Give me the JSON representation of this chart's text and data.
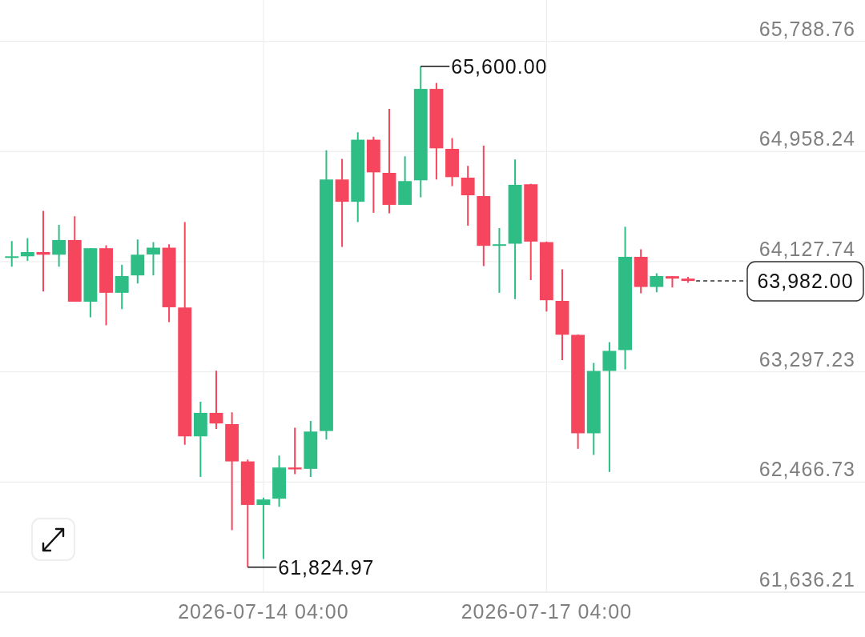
{
  "chart_data": {
    "type": "candlestick",
    "x": [
      "2026-07-11T12:00",
      "2026-07-11T16:00",
      "2026-07-11T20:00",
      "2026-07-12T00:00",
      "2026-07-12T04:00",
      "2026-07-12T08:00",
      "2026-07-12T12:00",
      "2026-07-12T16:00",
      "2026-07-12T20:00",
      "2026-07-13T00:00",
      "2026-07-13T04:00",
      "2026-07-13T08:00",
      "2026-07-13T12:00",
      "2026-07-13T16:00",
      "2026-07-13T20:00",
      "2026-07-14T00:00",
      "2026-07-14T04:00",
      "2026-07-14T08:00",
      "2026-07-14T12:00",
      "2026-07-14T16:00",
      "2026-07-14T20:00",
      "2026-07-15T00:00",
      "2026-07-15T04:00",
      "2026-07-15T08:00",
      "2026-07-15T12:00",
      "2026-07-15T16:00",
      "2026-07-15T20:00",
      "2026-07-16T00:00",
      "2026-07-16T04:00",
      "2026-07-16T08:00",
      "2026-07-16T12:00",
      "2026-07-16T16:00",
      "2026-07-16T20:00",
      "2026-07-17T00:00",
      "2026-07-17T04:00",
      "2026-07-17T08:00",
      "2026-07-17T12:00",
      "2026-07-17T16:00",
      "2026-07-17T20:00",
      "2026-07-18T00:00",
      "2026-07-18T04:00",
      "2026-07-18T08:00",
      "2026-07-18T12:00",
      "2026-07-18T16:00"
    ],
    "ohlc": [
      [
        64159,
        64283,
        64090,
        64168
      ],
      [
        64168,
        64305,
        64134,
        64200
      ],
      [
        64200,
        64510,
        63903,
        64180
      ],
      [
        64180,
        64405,
        64090,
        64291
      ],
      [
        64291,
        64470,
        63826,
        63826
      ],
      [
        63826,
        64229,
        63708,
        64229
      ],
      [
        64229,
        64251,
        63648,
        63893
      ],
      [
        63893,
        64104,
        63770,
        64019
      ],
      [
        64024,
        64295,
        63963,
        64180
      ],
      [
        64182,
        64275,
        64024,
        64233
      ],
      [
        64233,
        64259,
        63672,
        63784
      ],
      [
        63782,
        64426,
        62747,
        62811
      ],
      [
        62811,
        63072,
        62505,
        62988
      ],
      [
        62988,
        63306,
        62867,
        62908
      ],
      [
        62903,
        62992,
        62104,
        62622
      ],
      [
        62622,
        62636,
        61824.97,
        62294
      ],
      [
        62294,
        62349,
        61887,
        62335
      ],
      [
        62341,
        62666,
        62280,
        62576
      ],
      [
        62576,
        62876,
        62526,
        62562
      ],
      [
        62566,
        62927,
        62505,
        62847
      ],
      [
        62851,
        64968,
        62787,
        64747
      ],
      [
        64747,
        64902,
        64239,
        64579
      ],
      [
        64579,
        65103,
        64426,
        65047
      ],
      [
        65047,
        65069,
        64496,
        64801
      ],
      [
        64797,
        65280,
        64492,
        64556
      ],
      [
        64556,
        64922,
        64556,
        64735
      ],
      [
        64741,
        65600,
        64613,
        65430
      ],
      [
        65430,
        65475,
        64747,
        64982
      ],
      [
        64978,
        65059,
        64697,
        64765
      ],
      [
        64761,
        64850,
        64399,
        64628
      ],
      [
        64622,
        65002,
        64094,
        64247
      ],
      [
        64250,
        64381,
        63893,
        64259
      ],
      [
        64263,
        64898,
        63845,
        64707
      ],
      [
        64711,
        64715,
        63989,
        64279
      ],
      [
        64275,
        64279,
        63752,
        63837
      ],
      [
        63832,
        64070,
        63386,
        63577
      ],
      [
        63576,
        63579,
        62717,
        62834
      ],
      [
        62834,
        63364,
        62671,
        63304
      ],
      [
        63304,
        63521,
        62542,
        63455
      ],
      [
        63461,
        64391,
        63316,
        64164
      ],
      [
        64164,
        64221,
        63889,
        63937
      ],
      [
        63937,
        64040,
        63897,
        64019
      ],
      [
        64018,
        64018,
        63933,
        64000
      ],
      [
        64000,
        64013,
        63969,
        63982
      ]
    ],
    "colors": [
      "#2ebd85",
      "#2ebd85",
      "#f6465d",
      "#2ebd85",
      "#f6465d",
      "#2ebd85",
      "#f6465d",
      "#2ebd85",
      "#2ebd85",
      "#2ebd85",
      "#f6465d",
      "#f6465d",
      "#2ebd85",
      "#f6465d",
      "#f6465d",
      "#f6465d",
      "#2ebd85",
      "#2ebd85",
      "#f6465d",
      "#2ebd85",
      "#2ebd85",
      "#f6465d",
      "#2ebd85",
      "#f6465d",
      "#f6465d",
      "#2ebd85",
      "#2ebd85",
      "#f6465d",
      "#f6465d",
      "#f6465d",
      "#f6465d",
      "#2ebd85",
      "#2ebd85",
      "#f6465d",
      "#f6465d",
      "#f6465d",
      "#f6465d",
      "#2ebd85",
      "#2ebd85",
      "#2ebd85",
      "#f6465d",
      "#2ebd85",
      "#f6465d",
      "#f6465d"
    ],
    "xlim": [
      "2026-07-11T09:00",
      "2026-07-20T13:00"
    ],
    "ylim": [
      61636.21,
      66100
    ],
    "xticks": [
      {
        "value": "2026-07-14T04:00",
        "label": "2026-07-14 04:00"
      },
      {
        "value": "2026-07-17T04:00",
        "label": "2026-07-17 04:00"
      }
    ],
    "yticks": [
      {
        "value": 61636.21,
        "label": "61,636.21"
      },
      {
        "value": 62466.73,
        "label": "62,466.73"
      },
      {
        "value": 63297.23,
        "label": "63,297.23"
      },
      {
        "value": 64127.74,
        "label": "64,127.74"
      },
      {
        "value": 64958.24,
        "label": "64,958.24"
      },
      {
        "value": 65788.76,
        "label": "65,788.76"
      }
    ],
    "grid": true,
    "annotations": [
      {
        "text": "65,600.00",
        "x": "2026-07-15T20:00",
        "y": 65600
      },
      {
        "text": "61,824.97",
        "x": "2026-07-14T00:00",
        "y": 61824.97
      }
    ],
    "ref_lines": [
      {
        "axis": "y",
        "value": 63982,
        "label": "63,982.00",
        "color": "#333333",
        "line_style": "dashed"
      }
    ]
  }
}
